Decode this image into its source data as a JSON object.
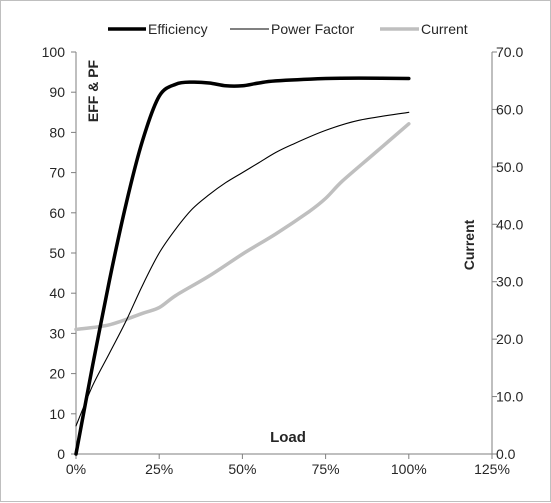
{
  "chart_data": {
    "type": "line",
    "title": "",
    "xlabel": "Load",
    "ylabel_left": "EFF & PF",
    "ylabel_right": "Current",
    "x_ticks": [
      "0%",
      "25%",
      "50%",
      "75%",
      "100%",
      "125%"
    ],
    "y_left_ticks": [
      "0",
      "10",
      "20",
      "30",
      "40",
      "50",
      "60",
      "70",
      "80",
      "90",
      "100"
    ],
    "y_right_ticks": [
      "0.0",
      "10.0",
      "20.0",
      "30.0",
      "40.0",
      "50.0",
      "60.0",
      "70.0"
    ],
    "xlim": [
      0,
      125
    ],
    "ylim_left": [
      0,
      100
    ],
    "ylim_right": [
      0,
      70
    ],
    "grid": false,
    "legend_position": "top",
    "series": [
      {
        "name": "Efficiency",
        "axis": "left",
        "color": "#000000",
        "weight": "thick",
        "x": [
          0,
          5,
          10,
          15,
          20,
          25,
          30,
          35,
          40,
          45,
          50,
          55,
          60,
          75,
          85,
          100
        ],
        "y": [
          0,
          22,
          43,
          62,
          78,
          89,
          92,
          92.5,
          92.3,
          91.6,
          91.6,
          92.3,
          92.8,
          93.4,
          93.5,
          93.4
        ]
      },
      {
        "name": "Power Factor",
        "axis": "left",
        "color": "#000000",
        "weight": "thin",
        "x": [
          0,
          5,
          10,
          15,
          20,
          25,
          30,
          35,
          40,
          45,
          50,
          55,
          60,
          65,
          75,
          85,
          100
        ],
        "y": [
          7,
          17,
          25,
          33,
          42,
          50,
          56,
          61,
          64.5,
          67.5,
          70,
          72.5,
          75,
          77,
          80.5,
          83,
          85
        ]
      },
      {
        "name": "Current",
        "axis": "right",
        "color": "#bfbfbf",
        "weight": "thick",
        "x": [
          0,
          10,
          20,
          25,
          30,
          40,
          50,
          60,
          70,
          75,
          80,
          90,
          100
        ],
        "y": [
          21.7,
          22.5,
          24.5,
          25.5,
          27.6,
          31,
          34.8,
          38.3,
          42.2,
          44.5,
          47.5,
          52.5,
          57.5
        ]
      }
    ]
  }
}
